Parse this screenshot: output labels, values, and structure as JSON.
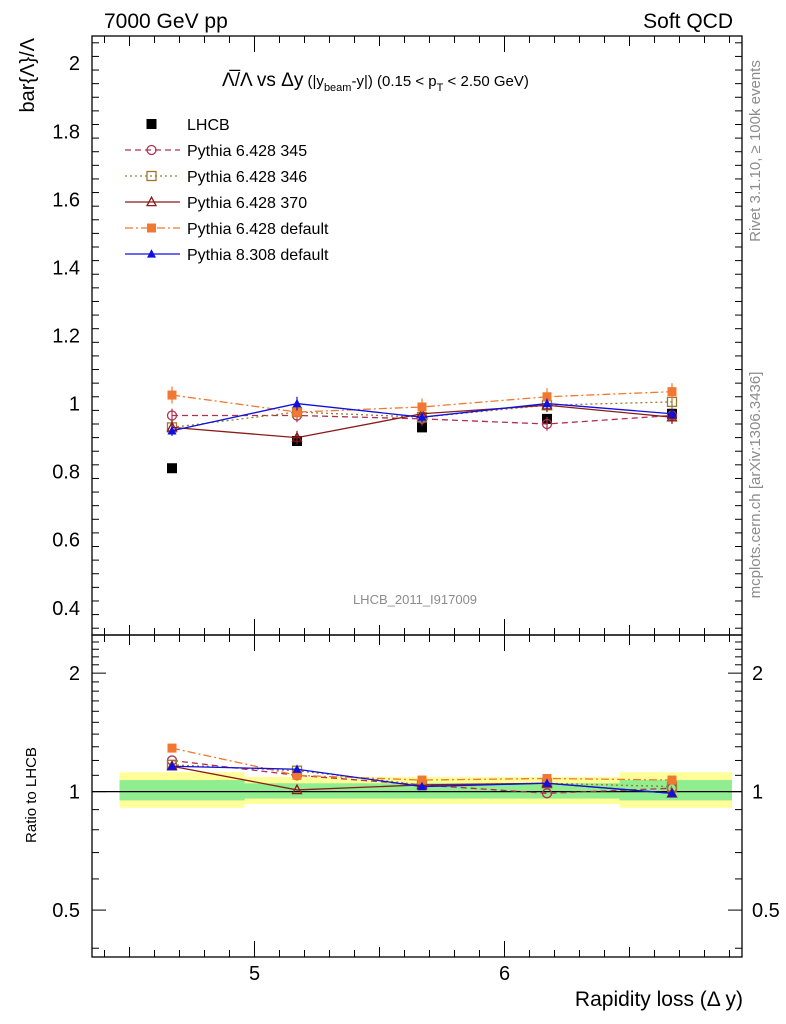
{
  "header": {
    "left": "7000 GeV pp",
    "right": "Soft QCD"
  },
  "side": {
    "rivet": "Rivet 3.1.10, ≥ 100k events",
    "mcplots": "mcplots.cern.ch [arXiv:1306.3436]"
  },
  "chart_data": [
    {
      "type": "scatter",
      "panel": "main",
      "title": "Λ̅/Λ vs Δy (|y_beam-y|) (0.15 < p_T < 2.50 GeV)",
      "title_parts": {
        "main": "Λ̅/Λ vs Δy",
        "p1": " (|y",
        "sub1": "beam",
        "p2": "-y|) (0.15 < p",
        "sub2": "T",
        "p3": " < 2.50 GeV)"
      },
      "ylabel": "bar{Λ}/Λ",
      "watermark": "LHCB_2011_I917009",
      "xlim": [
        4.35,
        6.95
      ],
      "ylim": [
        0.32,
        2.08
      ],
      "yticks": [
        0.4,
        0.6,
        0.8,
        1,
        1.2,
        1.4,
        1.6,
        1.8,
        2
      ],
      "ytick_labels": [
        "0.4",
        "0.6",
        "0.8",
        "1",
        "1.2",
        "1.4",
        "1.6",
        "1.8",
        "2"
      ],
      "x": [
        4.67,
        5.17,
        5.67,
        6.17,
        6.67
      ],
      "legend_position": "top-left",
      "series": [
        {
          "name": "LHCB",
          "color": "#000000",
          "marker": "square-filled",
          "line": "none",
          "values": [
            0.81,
            0.89,
            0.93,
            0.955,
            0.97
          ],
          "errors": [
            0.005,
            0.005,
            0.005,
            0.005,
            0.005
          ]
        },
        {
          "name": "Pythia 6.428 345",
          "color": "#b03050",
          "marker": "circle-open",
          "line": "dashed",
          "values": [
            0.965,
            0.965,
            0.955,
            0.94,
            0.965
          ],
          "errors": [
            0.02,
            0.02,
            0.02,
            0.02,
            0.02
          ]
        },
        {
          "name": "Pythia 6.428 346",
          "color": "#9b7a2c",
          "marker": "square-open",
          "line": "dotted",
          "values": [
            0.93,
            0.975,
            0.96,
            0.995,
            1.005
          ],
          "errors": [
            0.02,
            0.02,
            0.02,
            0.02,
            0.02
          ]
        },
        {
          "name": "Pythia 6.428 370",
          "color": "#8b1a1a",
          "marker": "triangle-open",
          "line": "solid",
          "values": [
            0.93,
            0.9,
            0.97,
            0.995,
            0.96
          ],
          "errors": [
            0.02,
            0.02,
            0.02,
            0.02,
            0.02
          ]
        },
        {
          "name": "Pythia 6.428 default",
          "color": "#f07830",
          "marker": "square-filled",
          "line": "dashdot",
          "values": [
            1.025,
            0.975,
            0.99,
            1.02,
            1.035
          ],
          "errors": [
            0.025,
            0.02,
            0.025,
            0.025,
            0.025
          ]
        },
        {
          "name": "Pythia 8.308 default",
          "color": "#1010e0",
          "marker": "triangle-filled",
          "line": "solid",
          "values": [
            0.92,
            1.0,
            0.96,
            1.0,
            0.97
          ],
          "errors": [
            0.015,
            0.02,
            0.015,
            0.015,
            0.015
          ]
        }
      ]
    },
    {
      "type": "scatter",
      "panel": "ratio",
      "ylabel": "Ratio to LHCB",
      "xlabel": "Rapidity loss (Δ y)",
      "scale": "log",
      "xlim": [
        4.35,
        6.95
      ],
      "ylim": [
        0.38,
        2.5
      ],
      "yticks": [
        0.5,
        1,
        2
      ],
      "ytick_labels": [
        "0.5",
        "1",
        "2"
      ],
      "xticks": [
        5,
        6
      ],
      "xtick_labels": [
        "5",
        "6"
      ],
      "x": [
        4.67,
        5.17,
        5.67,
        6.17,
        6.67
      ],
      "bands": {
        "x_edges": [
          4.42,
          4.92,
          5.42,
          5.92,
          6.42,
          6.92
        ],
        "yellow_lo": [
          0.91,
          0.93,
          0.93,
          0.93,
          0.91
        ],
        "yellow_hi": [
          1.12,
          1.09,
          1.09,
          1.09,
          1.12
        ],
        "green_lo": [
          0.95,
          0.96,
          0.96,
          0.96,
          0.95
        ],
        "green_hi": [
          1.07,
          1.05,
          1.05,
          1.05,
          1.07
        ],
        "yellow_color": "#ffff99",
        "green_color": "#90ee90"
      },
      "series": [
        {
          "name": "Pythia 6.428 345",
          "values": [
            1.2,
            1.1,
            1.04,
            0.99,
            1.02
          ]
        },
        {
          "name": "Pythia 6.428 346",
          "values": [
            1.17,
            1.13,
            1.04,
            1.05,
            1.03
          ]
        },
        {
          "name": "Pythia 6.428 370",
          "values": [
            1.16,
            1.01,
            1.04,
            1.05,
            0.99
          ]
        },
        {
          "name": "Pythia 6.428 default",
          "values": [
            1.29,
            1.1,
            1.07,
            1.08,
            1.07
          ]
        },
        {
          "name": "Pythia 8.308 default",
          "values": [
            1.16,
            1.14,
            1.03,
            1.05,
            0.99
          ]
        }
      ]
    }
  ]
}
